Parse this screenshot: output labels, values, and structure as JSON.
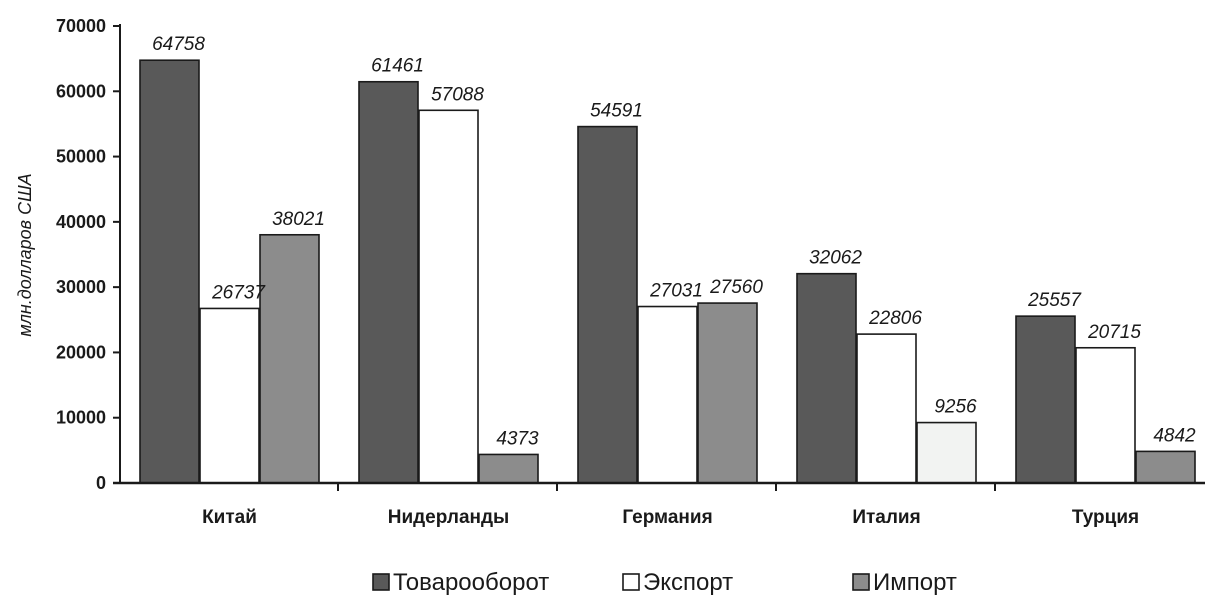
{
  "chart_data": {
    "type": "bar",
    "categories": [
      "Китай",
      "Нидерланды",
      "Германия",
      "Италия",
      "Турция"
    ],
    "series": [
      {
        "name": "Товарооборот",
        "color": "#595959",
        "values": [
          64758,
          61461,
          54591,
          32062,
          25557
        ]
      },
      {
        "name": "Экспорт",
        "color": "#ffffff",
        "values": [
          26737,
          57088,
          27031,
          22806,
          20715
        ]
      },
      {
        "name": "Импорт",
        "color": "#8c8c8c",
        "values": [
          38021,
          4373,
          27560,
          9256,
          4842
        ]
      }
    ],
    "value_labels": [
      [
        "64758",
        "61461",
        "54591",
        "32062",
        "25557"
      ],
      [
        "26737",
        "57088",
        "27031",
        "22806",
        "20715"
      ],
      [
        "38021",
        "4373",
        "27560",
        "9256",
        "4842"
      ]
    ],
    "bar_fill_overrides": [
      [
        null,
        null,
        null,
        null,
        null
      ],
      [
        null,
        null,
        null,
        null,
        null
      ],
      [
        null,
        null,
        null,
        "#f2f3f2",
        null
      ]
    ],
    "xlabel": "",
    "ylabel": "млн.долларов США",
    "ylim": [
      0,
      70000
    ],
    "yticks": [
      0,
      10000,
      20000,
      30000,
      40000,
      50000,
      60000,
      70000
    ],
    "grid": false,
    "legend_position": "bottom"
  }
}
